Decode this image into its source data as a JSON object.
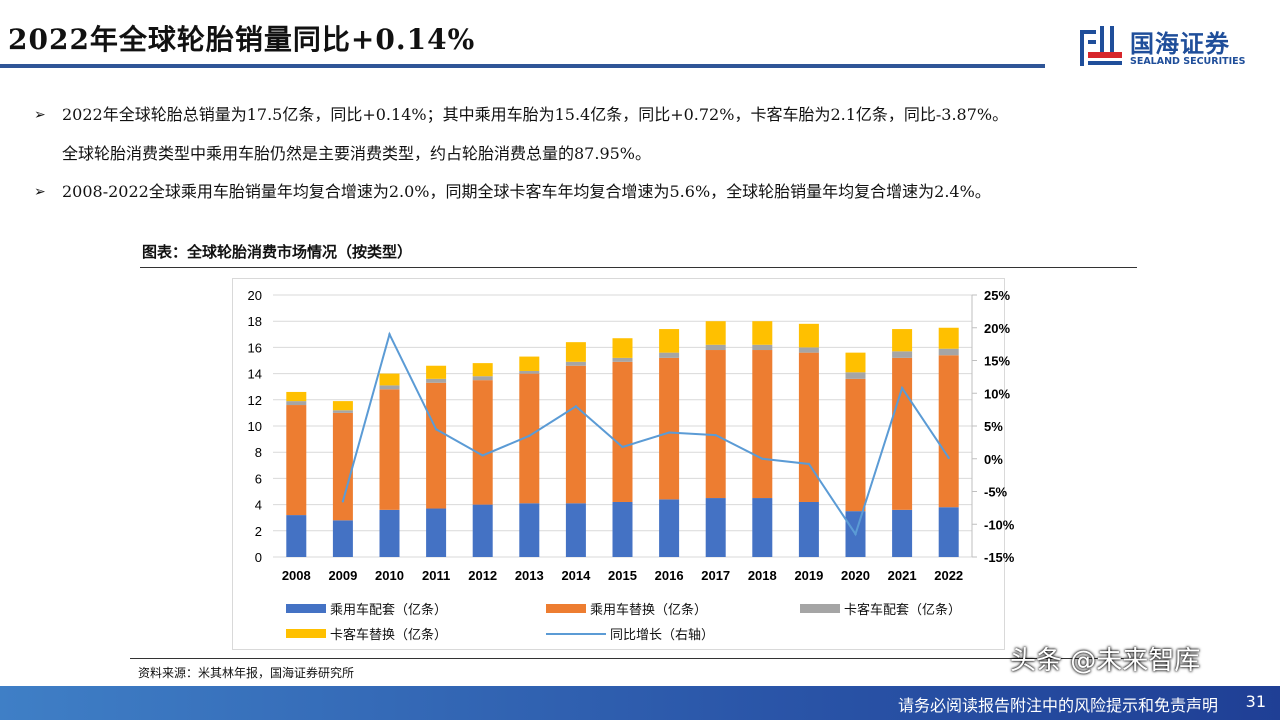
{
  "header": {
    "title": "2022年全球轮胎销量同比+0.14%",
    "logo_zh": "国海证券",
    "logo_en": "SEALAND SECURITIES"
  },
  "bullets": [
    {
      "line1": "2022年全球轮胎总销量为17.5亿条，同比+0.14%；其中乘用车胎为15.4亿条，同比+0.72%，卡客车胎为2.1亿条，同比-3.87%。",
      "line2": "全球轮胎消费类型中乘用车胎仍然是主要消费类型，约占轮胎消费总量的87.95%。"
    },
    {
      "line1": "2008-2022全球乘用车胎销量年均复合增速为2.0%，同期全球卡客车年均复合增速为5.6%，全球轮胎销量年均复合增速为2.4%。"
    }
  ],
  "chart_title": "图表：全球轮胎消费市场情况（按类型）",
  "source": "资料来源：米其林年报，国海证券研究所",
  "footer": {
    "disclaimer": "请务必阅读报告附注中的风险提示和免责声明",
    "page": "31",
    "watermark": "头条 @未来智库"
  },
  "chart_data": {
    "type": "bar",
    "stacked": true,
    "categories": [
      "2008",
      "2009",
      "2010",
      "2011",
      "2012",
      "2013",
      "2014",
      "2015",
      "2016",
      "2017",
      "2018",
      "2019",
      "2020",
      "2021",
      "2022"
    ],
    "series": [
      {
        "name": "乘用车配套（亿条）",
        "color": "#4472c4",
        "values": [
          3.2,
          2.8,
          3.6,
          3.7,
          4.0,
          4.1,
          4.1,
          4.2,
          4.4,
          4.5,
          4.5,
          4.2,
          3.5,
          3.6,
          3.8
        ]
      },
      {
        "name": "乘用车替换（亿条）",
        "color": "#ed7d31",
        "values": [
          8.4,
          8.2,
          9.2,
          9.6,
          9.5,
          9.9,
          10.5,
          10.7,
          10.8,
          11.3,
          11.3,
          11.4,
          10.1,
          11.6,
          11.6
        ]
      },
      {
        "name": "卡客车配套（亿条）",
        "color": "#a5a5a5",
        "values": [
          0.3,
          0.2,
          0.3,
          0.3,
          0.3,
          0.2,
          0.3,
          0.3,
          0.4,
          0.4,
          0.4,
          0.4,
          0.5,
          0.5,
          0.5
        ]
      },
      {
        "name": "卡客车替换（亿条）",
        "color": "#ffc000",
        "values": [
          0.7,
          0.7,
          0.9,
          1.0,
          1.0,
          1.1,
          1.5,
          1.5,
          1.8,
          1.8,
          1.8,
          1.8,
          1.5,
          1.7,
          1.6
        ]
      }
    ],
    "line_series": {
      "name": "同比增长（右轴）",
      "color": "#5b9bd5",
      "axis": "right",
      "values": [
        null,
        -6.5,
        19.0,
        4.5,
        0.5,
        3.5,
        8.0,
        1.8,
        4.0,
        3.6,
        0.0,
        -0.8,
        -11.5,
        10.8,
        0.14
      ]
    },
    "y_left": {
      "range": [
        0,
        20
      ],
      "ticks": [
        "0",
        "2",
        "4",
        "6",
        "8",
        "10",
        "12",
        "14",
        "16",
        "18",
        "20"
      ]
    },
    "y_right": {
      "range": [
        -15,
        25
      ],
      "ticks": [
        "-15%",
        "-10%",
        "-5%",
        "0%",
        "5%",
        "10%",
        "15%",
        "20%",
        "25%"
      ]
    },
    "grid": true,
    "legend_placement": "bottom"
  }
}
